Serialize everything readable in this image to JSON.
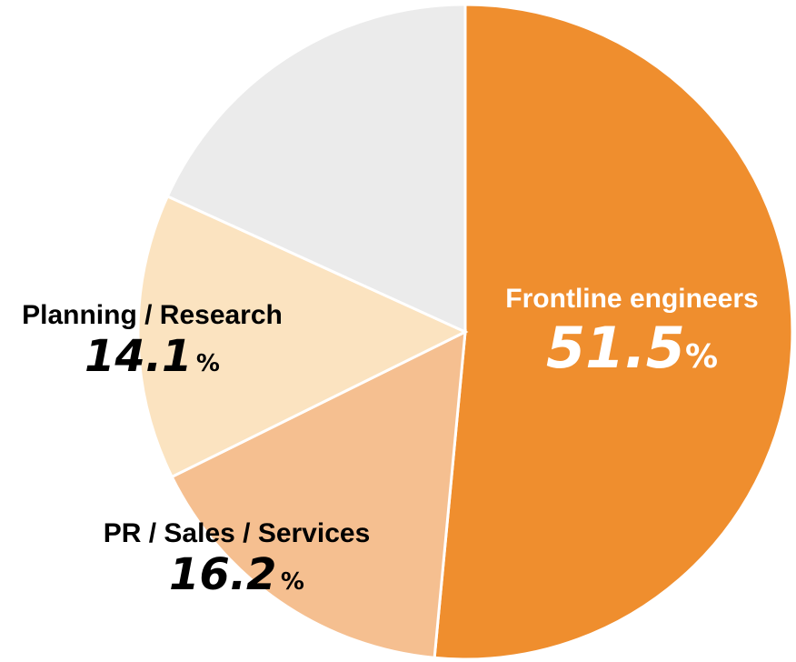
{
  "chart_data": {
    "type": "pie",
    "start": "top, clockwise",
    "slices": [
      {
        "name": "Frontline engineers",
        "value": 51.5,
        "value_label": "51.5",
        "color": "#EF8E2E",
        "text_color": "#FFFFFF"
      },
      {
        "name": "PR / Sales / Services",
        "value": 16.2,
        "value_label": "16.2",
        "color": "#F5BF90",
        "text_color": "#000000"
      },
      {
        "name": "Planning / Research",
        "value": 14.1,
        "value_label": "14.1",
        "color": "#FBE3C0",
        "text_color": "#000000"
      },
      {
        "name": "",
        "value": 18.2,
        "color": "#EBEBEB"
      }
    ],
    "unit": "%"
  }
}
